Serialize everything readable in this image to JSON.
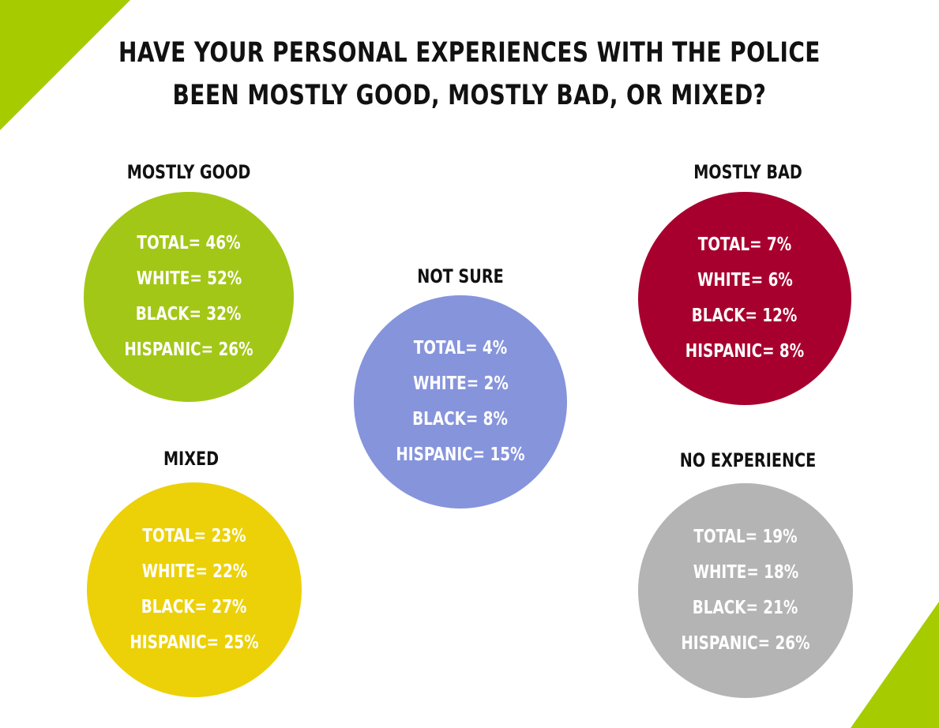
{
  "title": {
    "line1": "HAVE YOUR PERSONAL EXPERIENCES WITH THE POLICE",
    "line2": "BEEN MOSTLY GOOD, MOSTLY BAD, OR MIXED?"
  },
  "colors": {
    "accent_green": "#a6cc00",
    "mostly_good": "#a3c716",
    "mixed": "#ecd108",
    "not_sure": "#8694dc",
    "mostly_bad": "#a8002e",
    "no_experience": "#b4b4b4"
  },
  "chart_data": {
    "type": "bubble",
    "title": "HAVE YOUR PERSONAL EXPERIENCES WITH THE POLICE BEEN MOSTLY GOOD, MOSTLY BAD, OR MIXED?",
    "groups": [
      "TOTAL",
      "WHITE",
      "BLACK",
      "HISPANIC"
    ],
    "categories": [
      {
        "name": "MOSTLY GOOD",
        "values": [
          46,
          52,
          32,
          26
        ],
        "rows": [
          "TOTAL= 46%",
          "WHITE= 52%",
          "BLACK= 32%",
          "HISPANIC= 26%"
        ]
      },
      {
        "name": "MIXED",
        "values": [
          23,
          22,
          27,
          25
        ],
        "rows": [
          "TOTAL= 23%",
          "WHITE= 22%",
          "BLACK= 27%",
          "HISPANIC= 25%"
        ]
      },
      {
        "name": "NOT SURE",
        "values": [
          4,
          2,
          8,
          15
        ],
        "rows": [
          "TOTAL= 4%",
          "WHITE= 2%",
          "BLACK= 8%",
          "HISPANIC= 15%"
        ]
      },
      {
        "name": "MOSTLY BAD",
        "values": [
          7,
          6,
          12,
          8
        ],
        "rows": [
          "TOTAL= 7%",
          "WHITE= 6%",
          "BLACK= 12%",
          "HISPANIC= 8%"
        ]
      },
      {
        "name": "NO EXPERIENCE",
        "values": [
          19,
          18,
          21,
          26
        ],
        "rows": [
          "TOTAL= 19%",
          "WHITE= 18%",
          "BLACK= 21%",
          "HISPANIC= 26%"
        ]
      }
    ]
  }
}
